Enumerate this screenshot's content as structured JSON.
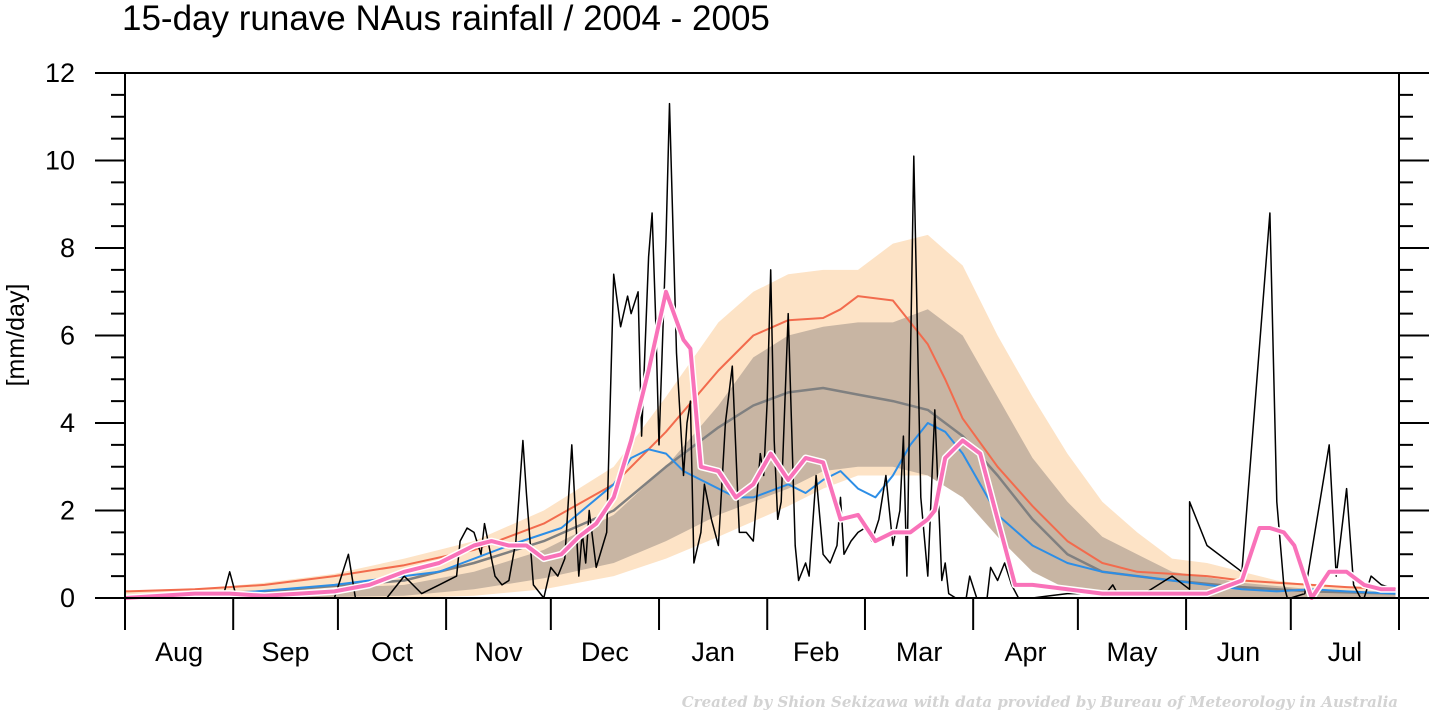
{
  "chart_data": {
    "type": "line",
    "title": "15-day runave NAus rainfall  /  2004 - 2005",
    "ylabel": "[mm/day]",
    "xlabel": "",
    "ylim": [
      0,
      12
    ],
    "yticks": [
      0,
      2,
      4,
      6,
      8,
      10,
      12
    ],
    "ytick_labels": [
      "0",
      "2",
      "4",
      "6",
      "8",
      "10",
      "12"
    ],
    "months": [
      "Aug",
      "Sep",
      "Oct",
      "Nov",
      "Dec",
      "Jan",
      "Feb",
      "Mar",
      "Apr",
      "May",
      "Jun",
      "Jul"
    ],
    "month_days": [
      31,
      30,
      31,
      30,
      31,
      31,
      28,
      31,
      30,
      31,
      30,
      31
    ],
    "x_unit": "days since 1 Aug 2004",
    "credit": "Created by Shion Sekizawa with data provided by Bureau of Meteorology in Australia",
    "colors": {
      "outer_band": "#fde3c6",
      "inner_band": "#c8b5a3",
      "red": "#f26b4d",
      "grey": "#808080",
      "blue": "#2d8ee6",
      "daily": "#000000",
      "pink": "#f972b9"
    },
    "series": [
      {
        "key": "band_outer_upper",
        "x": [
          0,
          20,
          40,
          60,
          80,
          100,
          120,
          140,
          155,
          170,
          180,
          190,
          200,
          210,
          220,
          230,
          240,
          250,
          260,
          270,
          280,
          290,
          300,
          310,
          320,
          330,
          340,
          350,
          364
        ],
        "values": [
          0.15,
          0.2,
          0.35,
          0.55,
          0.9,
          1.3,
          2.0,
          3.0,
          4.6,
          6.3,
          7.0,
          7.4,
          7.5,
          7.5,
          8.1,
          8.3,
          7.6,
          6.0,
          4.6,
          3.3,
          2.2,
          1.5,
          0.9,
          0.8,
          0.6,
          0.4,
          0.3,
          0.25,
          0.2
        ]
      },
      {
        "key": "band_outer_lower",
        "x": [
          0,
          40,
          80,
          100,
          120,
          140,
          155,
          170,
          190,
          200,
          210,
          230,
          240,
          250,
          260,
          270,
          290,
          364
        ],
        "values": [
          0,
          0,
          0,
          0.05,
          0.2,
          0.5,
          0.9,
          1.4,
          2.1,
          2.5,
          2.8,
          2.8,
          2.4,
          1.6,
          0.8,
          0.3,
          0.05,
          0
        ]
      },
      {
        "key": "band_inner_upper",
        "x": [
          0,
          40,
          80,
          100,
          120,
          140,
          155,
          170,
          180,
          190,
          200,
          210,
          220,
          230,
          240,
          250,
          260,
          270,
          280,
          300,
          320,
          340,
          364
        ],
        "values": [
          0.05,
          0.15,
          0.3,
          0.6,
          1.1,
          1.9,
          3.0,
          4.4,
          5.5,
          6.0,
          6.2,
          6.3,
          6.3,
          6.6,
          6.0,
          4.6,
          3.2,
          2.2,
          1.4,
          0.6,
          0.35,
          0.2,
          0.1
        ]
      },
      {
        "key": "band_inner_lower",
        "x": [
          0,
          40,
          80,
          100,
          120,
          140,
          155,
          170,
          190,
          200,
          210,
          220,
          230,
          240,
          250,
          260,
          270,
          290,
          364
        ],
        "values": [
          0,
          0,
          0.05,
          0.2,
          0.45,
          0.8,
          1.3,
          1.9,
          2.5,
          2.9,
          3.0,
          3.0,
          2.8,
          2.3,
          1.4,
          0.6,
          0.2,
          0.02,
          0
        ]
      },
      {
        "key": "red_mean",
        "name": "",
        "x": [
          0,
          20,
          40,
          60,
          80,
          100,
          120,
          140,
          155,
          170,
          180,
          190,
          200,
          205,
          210,
          220,
          230,
          235,
          240,
          250,
          260,
          270,
          280,
          290,
          300,
          310,
          320,
          330,
          340,
          350,
          364
        ],
        "values": [
          0.15,
          0.2,
          0.3,
          0.5,
          0.75,
          1.1,
          1.7,
          2.6,
          3.8,
          5.2,
          6.0,
          6.35,
          6.4,
          6.6,
          6.9,
          6.8,
          5.8,
          5.0,
          4.1,
          3.0,
          2.1,
          1.3,
          0.8,
          0.6,
          0.55,
          0.5,
          0.4,
          0.35,
          0.3,
          0.25,
          0.2
        ]
      },
      {
        "key": "grey_median",
        "name": "",
        "x": [
          0,
          40,
          80,
          100,
          120,
          140,
          155,
          170,
          180,
          190,
          200,
          210,
          220,
          230,
          240,
          250,
          260,
          270,
          280,
          300,
          320,
          340,
          364
        ],
        "values": [
          0.05,
          0.15,
          0.4,
          0.8,
          1.3,
          2.0,
          3.0,
          3.9,
          4.4,
          4.7,
          4.8,
          4.65,
          4.5,
          4.3,
          3.7,
          2.8,
          1.8,
          1.0,
          0.6,
          0.4,
          0.25,
          0.15,
          0.1
        ]
      },
      {
        "key": "blue_line",
        "name": "",
        "x": [
          0,
          30,
          60,
          90,
          110,
          125,
          140,
          145,
          150,
          155,
          160,
          170,
          175,
          180,
          190,
          195,
          200,
          205,
          210,
          215,
          220,
          225,
          230,
          235,
          240,
          245,
          250,
          260,
          270,
          280,
          290,
          300,
          310,
          320,
          330,
          340,
          350,
          364
        ],
        "values": [
          0.05,
          0.1,
          0.3,
          0.6,
          1.2,
          1.6,
          2.6,
          3.2,
          3.4,
          3.3,
          2.9,
          2.5,
          2.3,
          2.3,
          2.6,
          2.4,
          2.7,
          2.9,
          2.5,
          2.3,
          2.8,
          3.5,
          4.0,
          3.8,
          3.3,
          2.6,
          1.9,
          1.2,
          0.8,
          0.6,
          0.5,
          0.4,
          0.3,
          0.2,
          0.15,
          0.2,
          0.15,
          0.1
        ]
      },
      {
        "key": "pink_runave",
        "name": "",
        "x": [
          0,
          20,
          30,
          40,
          50,
          60,
          70,
          80,
          85,
          90,
          95,
          100,
          105,
          110,
          115,
          120,
          125,
          130,
          135,
          140,
          145,
          150,
          155,
          160,
          162,
          165,
          170,
          175,
          180,
          185,
          190,
          195,
          200,
          205,
          210,
          215,
          220,
          225,
          230,
          232,
          235,
          240,
          245,
          250,
          255,
          260,
          280,
          290,
          300,
          310,
          320,
          325,
          328,
          332,
          335,
          340,
          345,
          347,
          350,
          355,
          360,
          364
        ],
        "values": [
          0,
          0.1,
          0.1,
          0.05,
          0.1,
          0.15,
          0.3,
          0.6,
          0.7,
          0.8,
          1.0,
          1.2,
          1.3,
          1.2,
          1.2,
          0.9,
          1.0,
          1.4,
          1.7,
          2.3,
          3.6,
          5.2,
          7.0,
          5.9,
          5.7,
          3.0,
          2.9,
          2.3,
          2.6,
          3.3,
          2.7,
          3.2,
          3.1,
          1.8,
          1.9,
          1.3,
          1.5,
          1.5,
          1.8,
          2.0,
          3.2,
          3.6,
          3.3,
          1.8,
          0.3,
          0.3,
          0.1,
          0.1,
          0.1,
          0.1,
          0.4,
          1.6,
          1.6,
          1.5,
          1.2,
          0.0,
          0.6,
          0.6,
          0.6,
          0.3,
          0.2,
          0.2
        ]
      },
      {
        "key": "daily",
        "name": "",
        "x": [
          0,
          28,
          30,
          32,
          60,
          64,
          66,
          70,
          75,
          80,
          85,
          90,
          95,
          96,
          98,
          100,
          102,
          103,
          105,
          106,
          108,
          110,
          112,
          114,
          115,
          117,
          120,
          122,
          124,
          126,
          128,
          130,
          131,
          132,
          133,
          135,
          138,
          140,
          142,
          144,
          145,
          147,
          148,
          150,
          151,
          152,
          153,
          155,
          156,
          158,
          160,
          161,
          162,
          163,
          165,
          166,
          168,
          170,
          172,
          174,
          176,
          178,
          180,
          182,
          183,
          184,
          185,
          186,
          187,
          188,
          190,
          192,
          193,
          195,
          196,
          198,
          200,
          202,
          204,
          205,
          206,
          208,
          210,
          212,
          214,
          216,
          218,
          220,
          222,
          223,
          224,
          226,
          228,
          230,
          232,
          234,
          235,
          236,
          238,
          240,
          241,
          242,
          244,
          246,
          247,
          248,
          250,
          252,
          254,
          256,
          258,
          260,
          265,
          270,
          275,
          280,
          281,
          283,
          285,
          290,
          300,
          305,
          305,
          310,
          320,
          328,
          330,
          332,
          333,
          334,
          338,
          345,
          347,
          350,
          352,
          354,
          355,
          357,
          360,
          364
        ],
        "values": [
          0,
          0,
          0.6,
          0,
          0,
          1.0,
          0,
          0,
          0,
          0.5,
          0.1,
          0.3,
          0.5,
          1.3,
          1.6,
          1.5,
          1.0,
          1.7,
          0.9,
          0.5,
          0.3,
          0.4,
          1.3,
          3.6,
          2.4,
          0.3,
          0,
          0.7,
          0.5,
          0.9,
          3.5,
          0.5,
          1.5,
          0.8,
          2.0,
          0.7,
          1.5,
          7.4,
          6.2,
          6.9,
          6.5,
          7.0,
          3.7,
          7.8,
          8.8,
          6.5,
          3.5,
          8.2,
          11.3,
          5.6,
          2.8,
          4.0,
          4.5,
          0.8,
          1.5,
          2.6,
          1.8,
          1.2,
          4.0,
          5.3,
          1.5,
          1.5,
          1.3,
          3.3,
          2.8,
          4.5,
          7.5,
          3.6,
          1.8,
          2.2,
          6.5,
          1.2,
          0.4,
          0.8,
          0.5,
          2.8,
          1.0,
          0.8,
          1.2,
          2.3,
          1.0,
          1.3,
          1.5,
          1.6,
          1.3,
          1.8,
          2.8,
          1.2,
          2.0,
          3.7,
          0.5,
          10.1,
          2.3,
          0.5,
          4.3,
          0.4,
          0.8,
          0.1,
          0,
          0,
          0,
          0.5,
          0,
          0,
          0,
          0.7,
          0.4,
          0.8,
          0.3,
          0,
          0,
          0,
          0.05,
          0.1,
          0.1,
          0.1,
          0.1,
          0.3,
          0,
          0,
          0.5,
          0.2,
          2.2,
          1.2,
          0.6,
          8.8,
          2.2,
          0.3,
          0,
          0,
          0.1,
          3.5,
          0.5,
          2.5,
          0.3,
          0,
          0,
          0.5,
          0.3,
          0.2
        ]
      }
    ]
  }
}
